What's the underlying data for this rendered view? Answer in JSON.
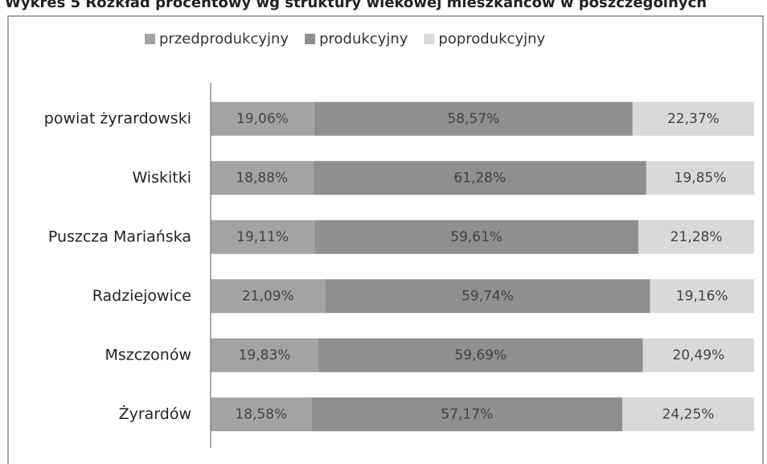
{
  "chart_data": {
    "type": "stacked-barh",
    "title": "Wykres 5 Rozkład procentowy wg struktury wiekowej mieszkańców w poszczególnych",
    "categories": [
      "powiat żyrardowski",
      "Wiskitki",
      "Puszcza Mariańska",
      "Radziejowice",
      "Mszczonów",
      "Żyrardów"
    ],
    "series": [
      {
        "name": "przedprodukcyjny",
        "color": "#a3a3a3",
        "values": [
          19.06,
          18.88,
          19.11,
          21.09,
          19.83,
          18.58
        ],
        "value_labels": [
          "19,06%",
          "18,88%",
          "19,11%",
          "21,09%",
          "19,83%",
          "18,58%"
        ]
      },
      {
        "name": "produkcyjny",
        "color": "#8f8f8f",
        "values": [
          58.57,
          61.28,
          59.61,
          59.74,
          59.69,
          57.17
        ],
        "value_labels": [
          "58,57%",
          "61,28%",
          "59,61%",
          "59,74%",
          "59,69%",
          "57,17%"
        ]
      },
      {
        "name": "poprodukcyjny",
        "color": "#d9d9d9",
        "values": [
          22.37,
          19.85,
          21.28,
          19.16,
          20.49,
          24.25
        ],
        "value_labels": [
          "22,37%",
          "19,85%",
          "21,28%",
          "19,16%",
          "20,49%",
          "24,25%"
        ]
      }
    ],
    "xlim": [
      0,
      100
    ],
    "legend": "top"
  }
}
